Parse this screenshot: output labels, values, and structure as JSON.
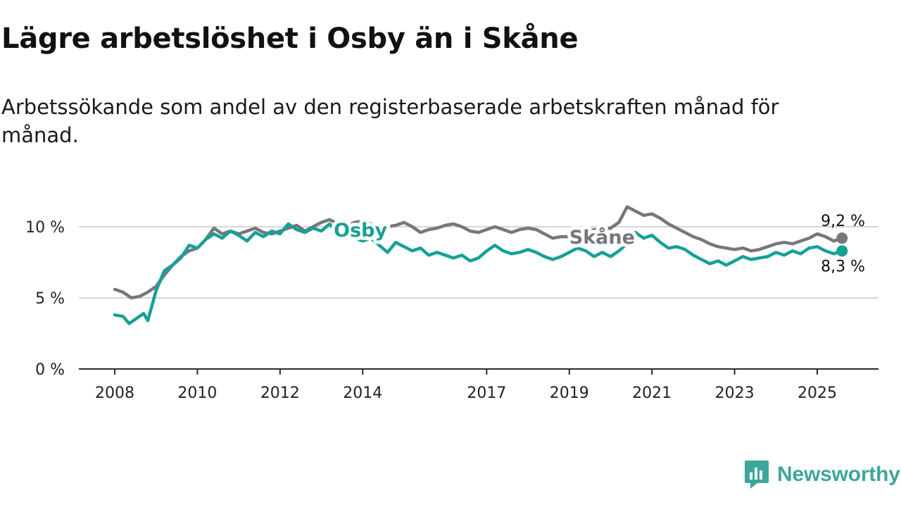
{
  "title": "Lägre arbetslöshet i Osby än i Skåne",
  "subtitle": "Arbetssökande som andel av den registerbaserade arbetskraften månad för månad.",
  "brand": {
    "name": "Newsworthy",
    "icon": "newsworthy-logo-icon",
    "color": "#3ea79b"
  },
  "chart_data": {
    "type": "line",
    "title": "Lägre arbetslöshet i Osby än i Skåne",
    "xlabel": "",
    "ylabel": "",
    "xlim": [
      2007.4,
      2026.6
    ],
    "ylim": [
      0,
      10
    ],
    "y_ticks": [
      0,
      5,
      10
    ],
    "y_tick_labels": [
      "0 %",
      "5 %",
      "10 %"
    ],
    "x_ticks": [
      2008,
      2010,
      2012,
      2014,
      2017,
      2019,
      2021,
      2023,
      2025
    ],
    "x_tick_labels": [
      "2008",
      "2010",
      "2012",
      "2014",
      "2017",
      "2019",
      "2021",
      "2023",
      "2025"
    ],
    "grid": true,
    "legend": "inline",
    "series": [
      {
        "name": "Skåne",
        "color": "#77767b",
        "end_label": "9,2 %",
        "points": [
          [
            2008.0,
            5.6
          ],
          [
            2008.2,
            5.4
          ],
          [
            2008.4,
            5.0
          ],
          [
            2008.6,
            5.1
          ],
          [
            2008.8,
            5.4
          ],
          [
            2009.0,
            5.8
          ],
          [
            2009.2,
            6.6
          ],
          [
            2009.4,
            7.3
          ],
          [
            2009.6,
            7.9
          ],
          [
            2009.8,
            8.3
          ],
          [
            2010.0,
            8.5
          ],
          [
            2010.2,
            9.1
          ],
          [
            2010.4,
            9.9
          ],
          [
            2010.6,
            9.5
          ],
          [
            2010.8,
            9.7
          ],
          [
            2011.0,
            9.5
          ],
          [
            2011.2,
            9.7
          ],
          [
            2011.4,
            9.9
          ],
          [
            2011.6,
            9.6
          ],
          [
            2011.8,
            9.5
          ],
          [
            2012.0,
            9.7
          ],
          [
            2012.2,
            9.9
          ],
          [
            2012.4,
            10.1
          ],
          [
            2012.6,
            9.7
          ],
          [
            2012.8,
            10.0
          ],
          [
            2013.0,
            10.3
          ],
          [
            2013.2,
            10.5
          ],
          [
            2013.4,
            10.2
          ],
          [
            2013.6,
            10.0
          ],
          [
            2013.8,
            10.3
          ],
          [
            2014.0,
            10.4
          ],
          [
            2014.2,
            10.2
          ],
          [
            2014.4,
            9.8
          ],
          [
            2014.6,
            10.0
          ],
          [
            2014.8,
            10.1
          ],
          [
            2015.0,
            10.3
          ],
          [
            2015.2,
            10.0
          ],
          [
            2015.4,
            9.6
          ],
          [
            2015.6,
            9.8
          ],
          [
            2015.8,
            9.9
          ],
          [
            2016.0,
            10.1
          ],
          [
            2016.2,
            10.2
          ],
          [
            2016.4,
            10.0
          ],
          [
            2016.6,
            9.7
          ],
          [
            2016.8,
            9.6
          ],
          [
            2017.0,
            9.8
          ],
          [
            2017.2,
            10.0
          ],
          [
            2017.4,
            9.8
          ],
          [
            2017.6,
            9.6
          ],
          [
            2017.8,
            9.8
          ],
          [
            2018.0,
            9.9
          ],
          [
            2018.2,
            9.8
          ],
          [
            2018.4,
            9.5
          ],
          [
            2018.6,
            9.2
          ],
          [
            2018.8,
            9.3
          ],
          [
            2019.0,
            9.3
          ],
          [
            2019.2,
            9.4
          ],
          [
            2019.4,
            9.6
          ],
          [
            2019.6,
            9.8
          ],
          [
            2019.8,
            9.8
          ],
          [
            2020.0,
            9.9
          ],
          [
            2020.2,
            10.3
          ],
          [
            2020.4,
            11.4
          ],
          [
            2020.6,
            11.1
          ],
          [
            2020.8,
            10.8
          ],
          [
            2021.0,
            10.9
          ],
          [
            2021.2,
            10.6
          ],
          [
            2021.4,
            10.2
          ],
          [
            2021.6,
            9.9
          ],
          [
            2021.8,
            9.6
          ],
          [
            2022.0,
            9.3
          ],
          [
            2022.2,
            9.1
          ],
          [
            2022.4,
            8.8
          ],
          [
            2022.6,
            8.6
          ],
          [
            2022.8,
            8.5
          ],
          [
            2023.0,
            8.4
          ],
          [
            2023.2,
            8.5
          ],
          [
            2023.4,
            8.3
          ],
          [
            2023.6,
            8.4
          ],
          [
            2023.8,
            8.6
          ],
          [
            2024.0,
            8.8
          ],
          [
            2024.2,
            8.9
          ],
          [
            2024.4,
            8.8
          ],
          [
            2024.6,
            9.0
          ],
          [
            2024.8,
            9.2
          ],
          [
            2025.0,
            9.5
          ],
          [
            2025.2,
            9.3
          ],
          [
            2025.4,
            9.0
          ],
          [
            2025.6,
            9.2
          ]
        ]
      },
      {
        "name": "Osby",
        "color": "#15a195",
        "end_label": "8,3 %",
        "points": [
          [
            2008.0,
            3.8
          ],
          [
            2008.2,
            3.7
          ],
          [
            2008.35,
            3.2
          ],
          [
            2008.55,
            3.6
          ],
          [
            2008.7,
            3.9
          ],
          [
            2008.8,
            3.4
          ],
          [
            2009.0,
            5.5
          ],
          [
            2009.2,
            6.9
          ],
          [
            2009.4,
            7.3
          ],
          [
            2009.6,
            7.8
          ],
          [
            2009.8,
            8.7
          ],
          [
            2010.0,
            8.5
          ],
          [
            2010.2,
            9.1
          ],
          [
            2010.4,
            9.5
          ],
          [
            2010.6,
            9.2
          ],
          [
            2010.8,
            9.7
          ],
          [
            2011.0,
            9.4
          ],
          [
            2011.2,
            9.0
          ],
          [
            2011.4,
            9.6
          ],
          [
            2011.6,
            9.3
          ],
          [
            2011.8,
            9.7
          ],
          [
            2012.0,
            9.5
          ],
          [
            2012.2,
            10.2
          ],
          [
            2012.4,
            9.8
          ],
          [
            2012.6,
            9.6
          ],
          [
            2012.8,
            9.9
          ],
          [
            2013.0,
            9.7
          ],
          [
            2013.2,
            10.2
          ],
          [
            2013.4,
            9.4
          ],
          [
            2013.6,
            9.8
          ],
          [
            2013.8,
            9.2
          ],
          [
            2014.0,
            9.0
          ],
          [
            2014.2,
            9.2
          ],
          [
            2014.4,
            8.7
          ],
          [
            2014.6,
            8.2
          ],
          [
            2014.8,
            8.9
          ],
          [
            2015.0,
            8.6
          ],
          [
            2015.2,
            8.3
          ],
          [
            2015.4,
            8.5
          ],
          [
            2015.6,
            8.0
          ],
          [
            2015.8,
            8.2
          ],
          [
            2016.0,
            8.0
          ],
          [
            2016.2,
            7.8
          ],
          [
            2016.4,
            8.0
          ],
          [
            2016.6,
            7.6
          ],
          [
            2016.8,
            7.8
          ],
          [
            2017.0,
            8.3
          ],
          [
            2017.2,
            8.7
          ],
          [
            2017.4,
            8.3
          ],
          [
            2017.6,
            8.1
          ],
          [
            2017.8,
            8.2
          ],
          [
            2018.0,
            8.4
          ],
          [
            2018.2,
            8.2
          ],
          [
            2018.4,
            7.9
          ],
          [
            2018.6,
            7.7
          ],
          [
            2018.8,
            7.9
          ],
          [
            2019.0,
            8.2
          ],
          [
            2019.2,
            8.5
          ],
          [
            2019.4,
            8.3
          ],
          [
            2019.6,
            7.9
          ],
          [
            2019.8,
            8.2
          ],
          [
            2020.0,
            7.9
          ],
          [
            2020.2,
            8.3
          ],
          [
            2020.4,
            8.8
          ],
          [
            2020.6,
            9.6
          ],
          [
            2020.8,
            9.2
          ],
          [
            2021.0,
            9.4
          ],
          [
            2021.2,
            8.9
          ],
          [
            2021.4,
            8.5
          ],
          [
            2021.6,
            8.6
          ],
          [
            2021.8,
            8.4
          ],
          [
            2022.0,
            8.0
          ],
          [
            2022.2,
            7.7
          ],
          [
            2022.4,
            7.4
          ],
          [
            2022.6,
            7.6
          ],
          [
            2022.8,
            7.3
          ],
          [
            2023.0,
            7.6
          ],
          [
            2023.2,
            7.9
          ],
          [
            2023.4,
            7.7
          ],
          [
            2023.6,
            7.8
          ],
          [
            2023.8,
            7.9
          ],
          [
            2024.0,
            8.2
          ],
          [
            2024.2,
            8.0
          ],
          [
            2024.4,
            8.3
          ],
          [
            2024.6,
            8.1
          ],
          [
            2024.8,
            8.5
          ],
          [
            2025.0,
            8.6
          ],
          [
            2025.2,
            8.3
          ],
          [
            2025.4,
            8.1
          ],
          [
            2025.6,
            8.3
          ]
        ]
      }
    ]
  }
}
